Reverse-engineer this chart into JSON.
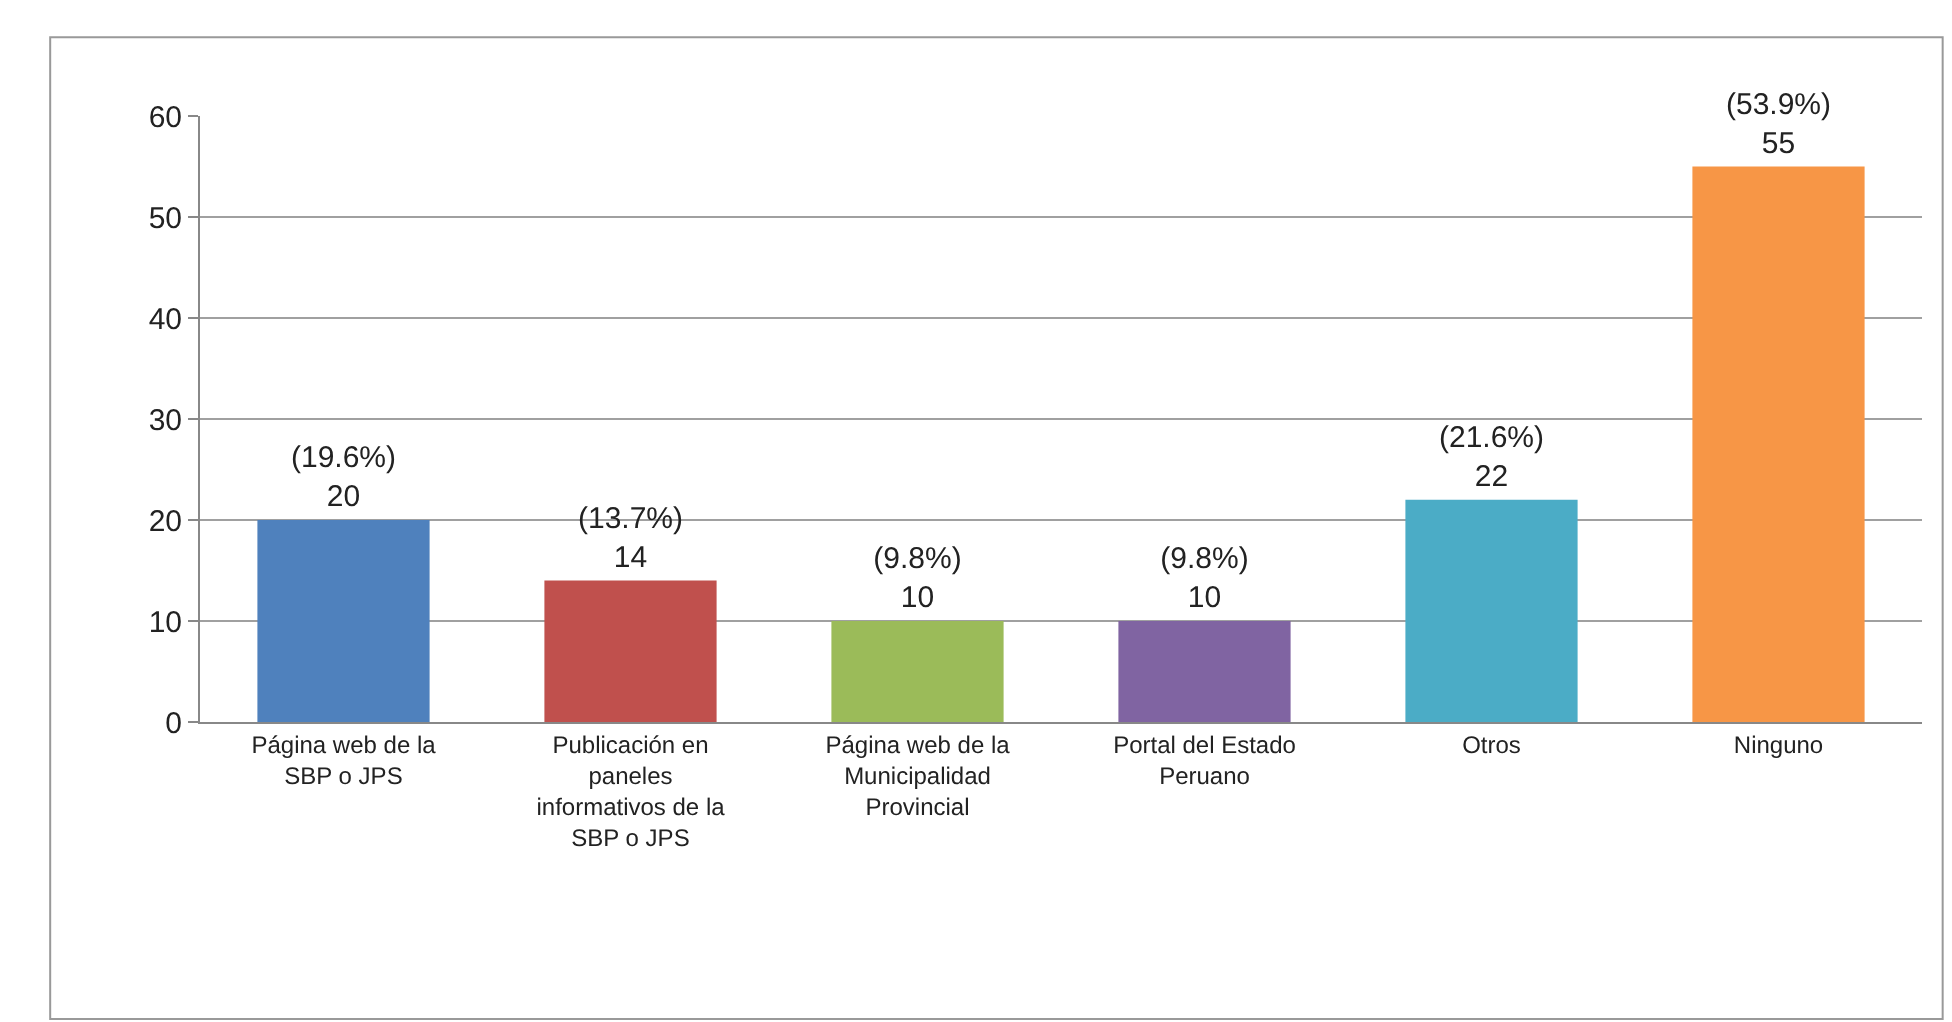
{
  "chart_data": {
    "type": "bar",
    "categories": [
      "Página web de la SBP o JPS",
      "Publicación en paneles informativos de la SBP o JPS",
      "Página web de la Municipalidad Provincial",
      "Portal del Estado Peruano",
      "Otros",
      "Ninguno"
    ],
    "values": [
      20,
      14,
      10,
      10,
      22,
      55
    ],
    "colors": [
      "#4f81bd",
      "#c0504d",
      "#9bbb59",
      "#8064a2",
      "#4bacc6",
      "#f79646"
    ],
    "value_labels": [
      "(19.6%)\n20",
      "(13.7%)\n14",
      "(9.8%)\n10",
      "(9.8%)\n10",
      "(21.6%)\n22",
      "(53.9%)\n55"
    ],
    "ylim": [
      0,
      60
    ],
    "yticks": [
      0,
      10,
      20,
      30,
      40,
      50,
      60
    ],
    "grid": "y",
    "legend": false
  }
}
